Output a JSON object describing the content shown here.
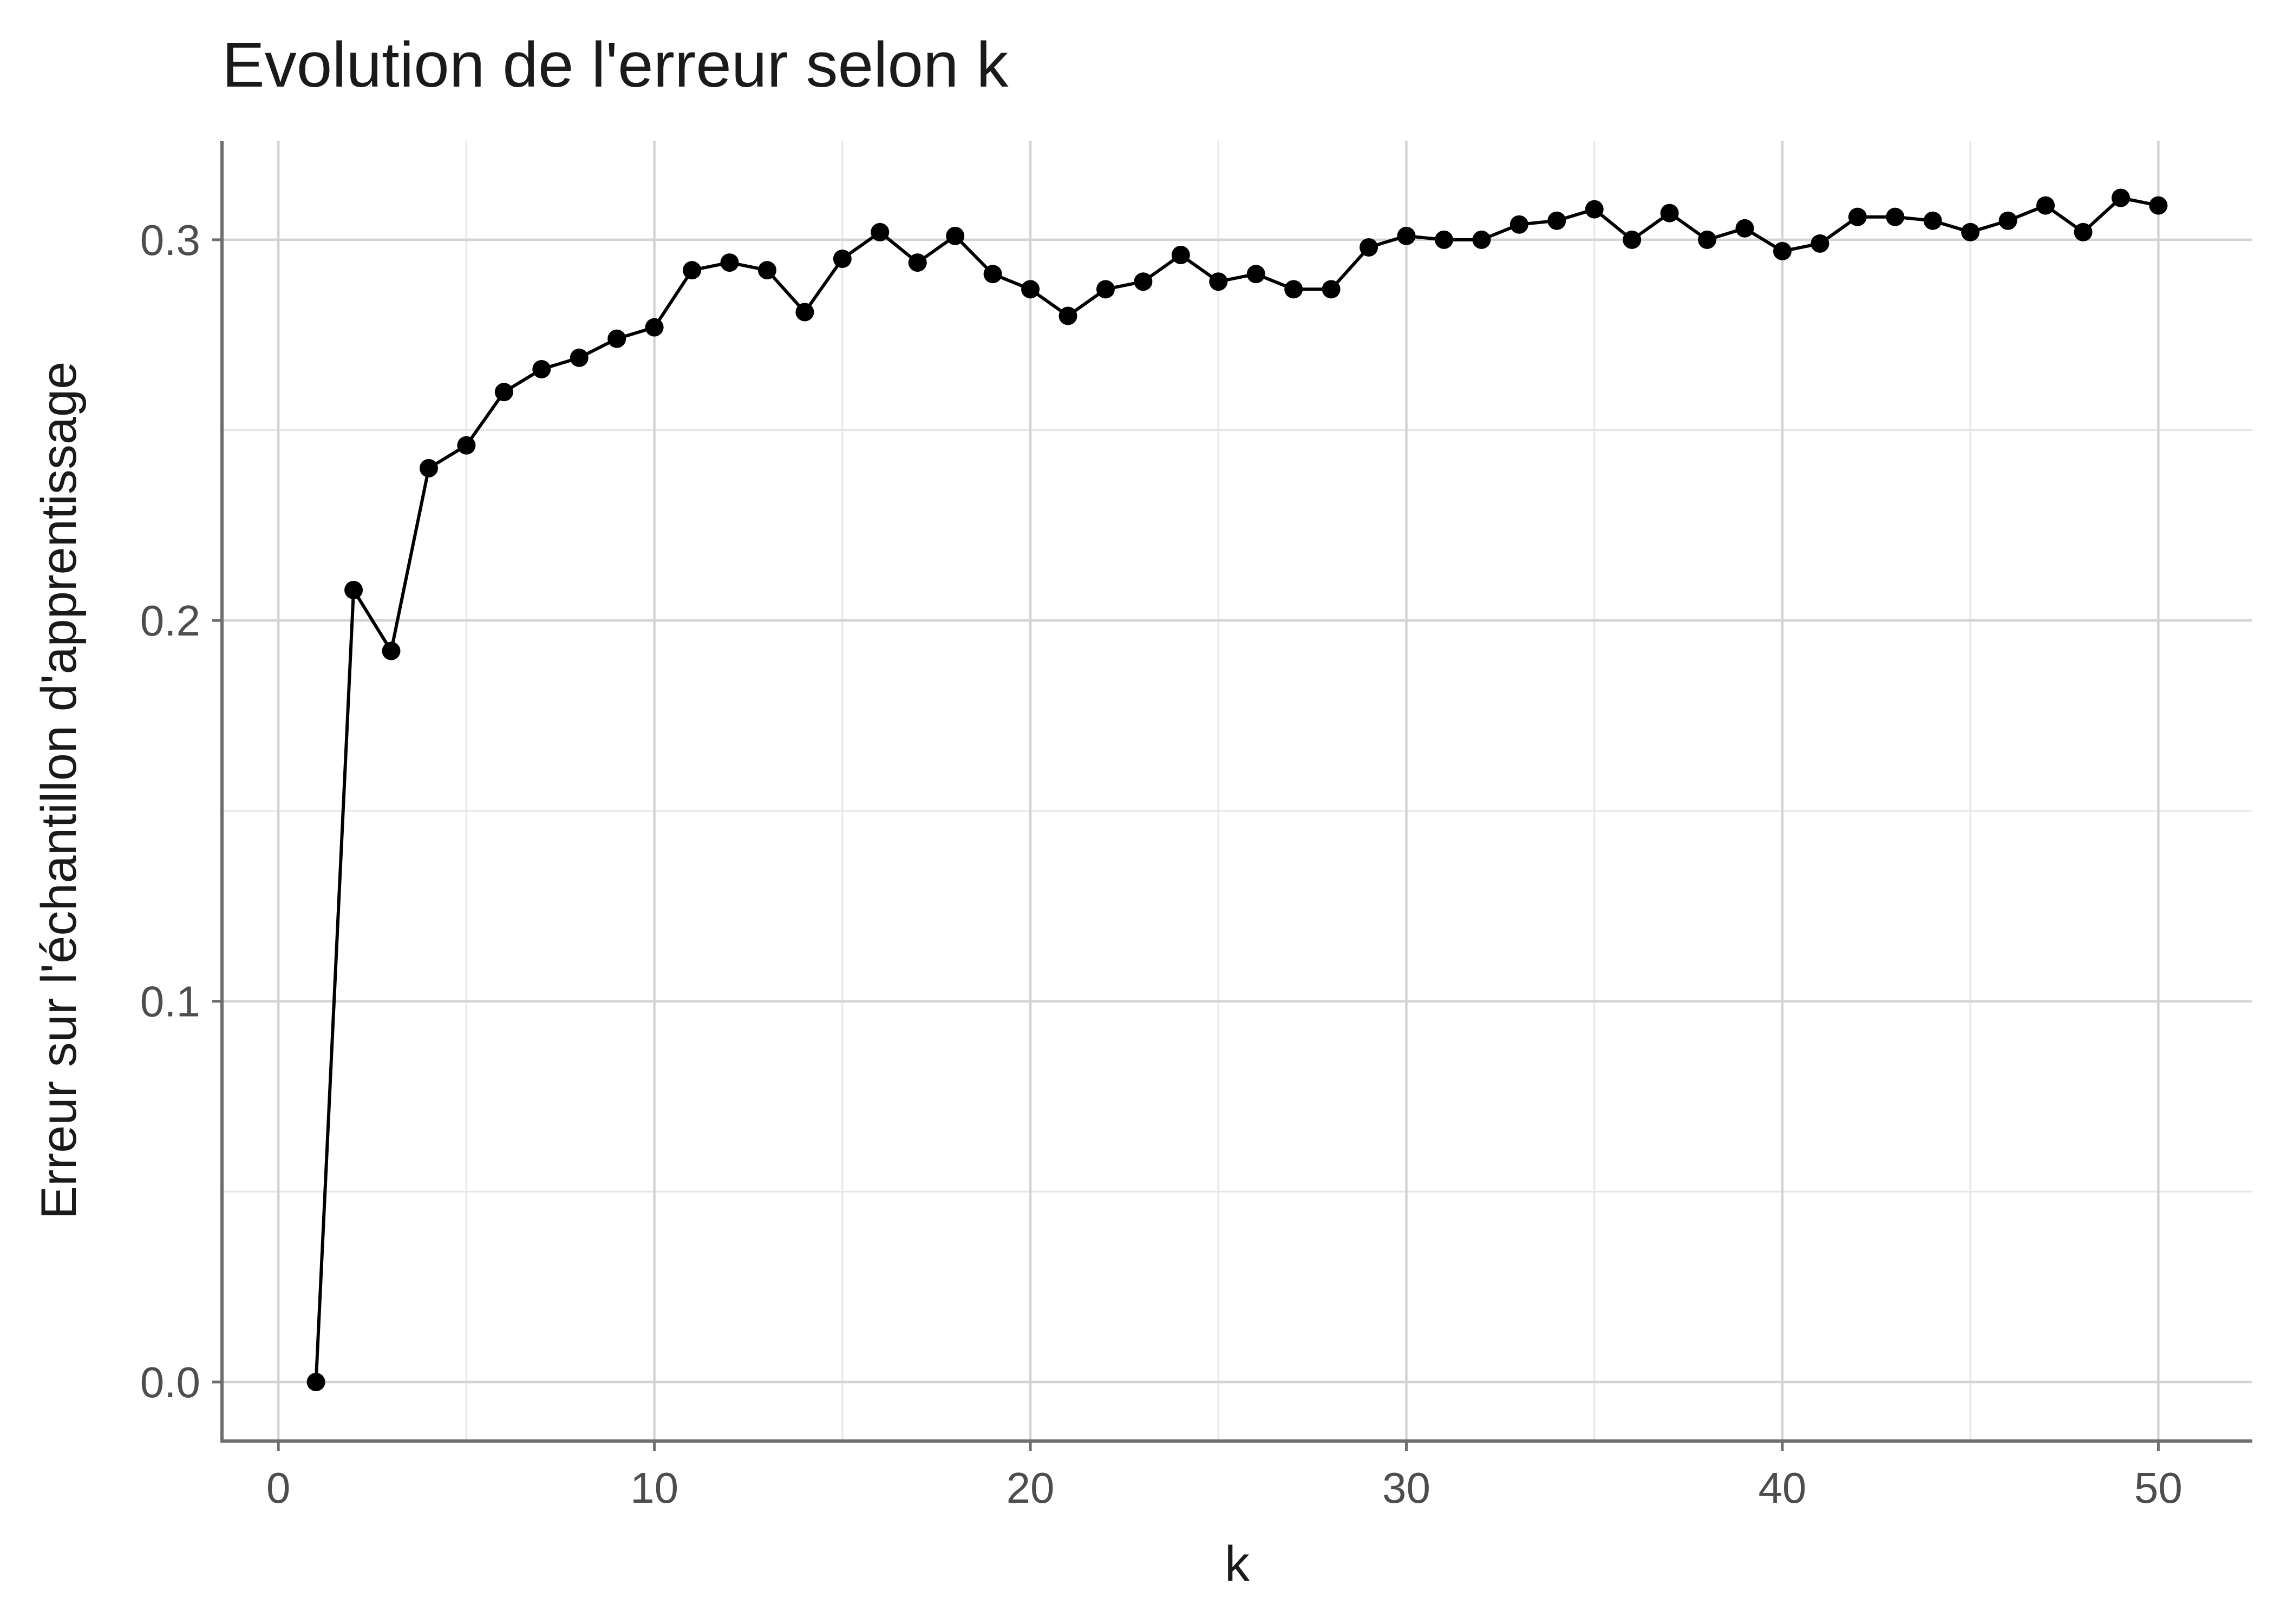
{
  "chart_data": {
    "type": "line",
    "title": "Evolution de l'erreur selon k",
    "xlabel": "k",
    "ylabel": "Erreur sur l'échantillon d'apprentissage",
    "xlim": [
      -1.5,
      52.5
    ],
    "ylim": [
      -0.0155,
      0.326
    ],
    "x_ticks": [
      0,
      10,
      20,
      30,
      40,
      50
    ],
    "x_tick_labels": [
      "0",
      "10",
      "20",
      "30",
      "40",
      "50"
    ],
    "y_ticks": [
      0.0,
      0.1,
      0.2,
      0.3
    ],
    "y_tick_labels": [
      "0.0",
      "0.1",
      "0.2",
      "0.3"
    ],
    "x_minor_ticks": [
      5,
      15,
      25,
      35,
      45
    ],
    "y_minor_ticks": [
      0.05,
      0.15,
      0.25
    ],
    "grid": true,
    "legend": "none",
    "markers": true,
    "series": [
      {
        "color": "#000000",
        "x": [
          1,
          2,
          3,
          4,
          5,
          6,
          7,
          8,
          9,
          10,
          11,
          12,
          13,
          14,
          15,
          16,
          17,
          18,
          19,
          20,
          21,
          22,
          23,
          24,
          25,
          26,
          27,
          28,
          29,
          30,
          31,
          32,
          33,
          34,
          35,
          36,
          37,
          38,
          39,
          40,
          41,
          42,
          43,
          44,
          45,
          46,
          47,
          48,
          49,
          50
        ],
        "y": [
          0.0,
          0.208,
          0.192,
          0.24,
          0.246,
          0.26,
          0.266,
          0.269,
          0.274,
          0.277,
          0.292,
          0.294,
          0.292,
          0.281,
          0.295,
          0.302,
          0.294,
          0.301,
          0.291,
          0.287,
          0.28,
          0.287,
          0.289,
          0.296,
          0.289,
          0.291,
          0.287,
          0.287,
          0.298,
          0.301,
          0.3,
          0.3,
          0.304,
          0.305,
          0.308,
          0.3,
          0.307,
          0.3,
          0.303,
          0.297,
          0.299,
          0.306,
          0.306,
          0.305,
          0.302,
          0.305,
          0.309,
          0.302,
          0.311,
          0.309
        ]
      }
    ]
  }
}
